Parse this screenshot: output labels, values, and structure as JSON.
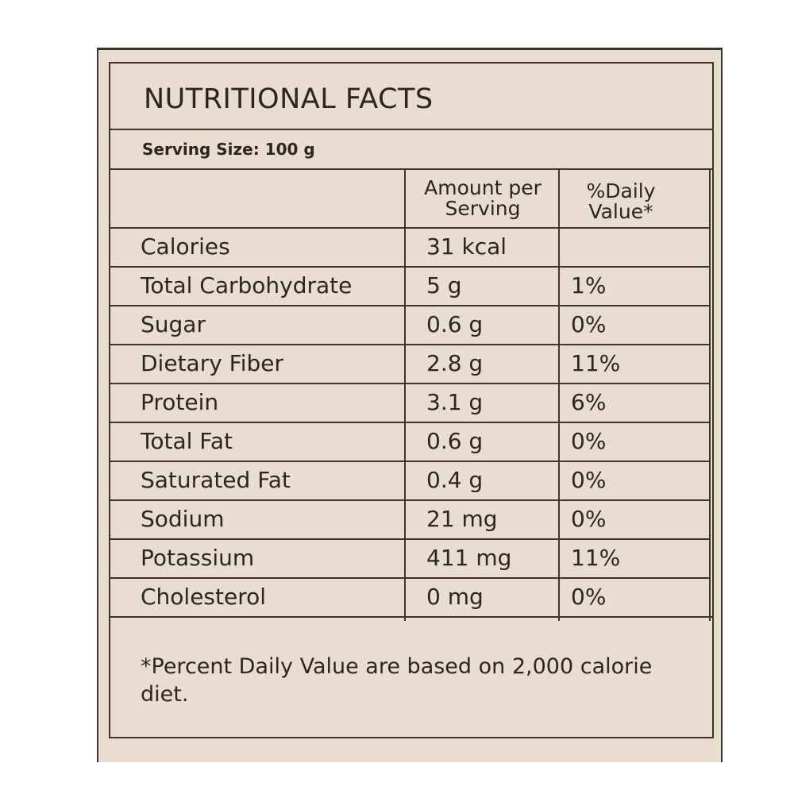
{
  "title": "NUTRITIONAL FACTS",
  "serving_size": "Serving Size: 100 g",
  "columns": {
    "amount": "Amount per Serving",
    "daily_value": "%Daily Value*"
  },
  "rows": [
    {
      "nutrient": "Calories",
      "amount": "31 kcal",
      "dv": ""
    },
    {
      "nutrient": "Total Carbohydrate",
      "amount": "5 g",
      "dv": "1%"
    },
    {
      "nutrient": "Sugar",
      "amount": "0.6 g",
      "dv": "0%"
    },
    {
      "nutrient": "Dietary Fiber",
      "amount": "2.8 g",
      "dv": "11%"
    },
    {
      "nutrient": "Protein",
      "amount": "3.1 g",
      "dv": "6%"
    },
    {
      "nutrient": "Total Fat",
      "amount": "0.6 g",
      "dv": "0%"
    },
    {
      "nutrient": "Saturated Fat",
      "amount": "0.4 g",
      "dv": "0%"
    },
    {
      "nutrient": "Sodium",
      "amount": "21 mg",
      "dv": "0%"
    },
    {
      "nutrient": "Potassium",
      "amount": "411 mg",
      "dv": "11%"
    },
    {
      "nutrient": "Cholesterol",
      "amount": "0 mg",
      "dv": "0%"
    }
  ],
  "footnote": "*Percent Daily Value are based on 2,000 calorie diet.",
  "colors": {
    "background": "#e8ddcf",
    "ink": "#2b2622",
    "rule": "#3d3630"
  }
}
